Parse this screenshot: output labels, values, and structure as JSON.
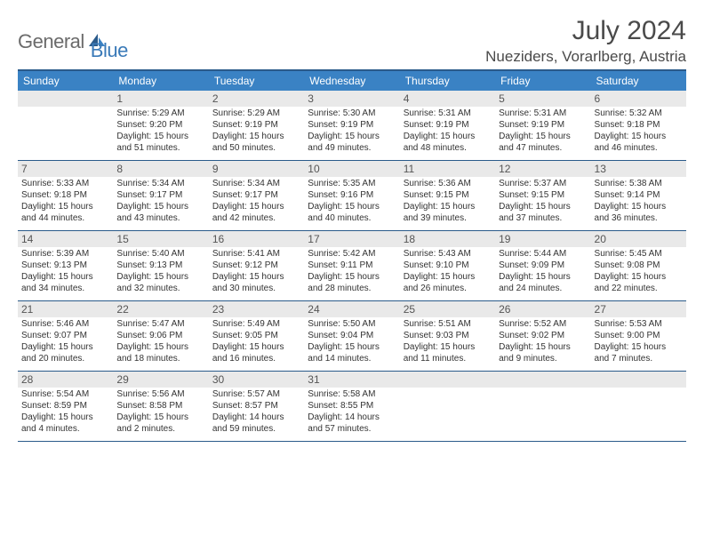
{
  "logo": {
    "general": "General",
    "blue": "Blue"
  },
  "title": "July 2024",
  "location": "Nueziders, Vorarlberg, Austria",
  "weekdays": [
    "Sunday",
    "Monday",
    "Tuesday",
    "Wednesday",
    "Thursday",
    "Friday",
    "Saturday"
  ],
  "colors": {
    "header_bar": "#3a82c4",
    "border": "#2a5a8a",
    "day_num_bg": "#e9e9e9",
    "text": "#333333",
    "logo_gray": "#6b6b6b",
    "logo_blue": "#3a7ab8"
  },
  "weeks": [
    [
      {
        "n": "",
        "sr": "",
        "ss": "",
        "dl": ""
      },
      {
        "n": "1",
        "sr": "Sunrise: 5:29 AM",
        "ss": "Sunset: 9:20 PM",
        "dl": "Daylight: 15 hours and 51 minutes."
      },
      {
        "n": "2",
        "sr": "Sunrise: 5:29 AM",
        "ss": "Sunset: 9:19 PM",
        "dl": "Daylight: 15 hours and 50 minutes."
      },
      {
        "n": "3",
        "sr": "Sunrise: 5:30 AM",
        "ss": "Sunset: 9:19 PM",
        "dl": "Daylight: 15 hours and 49 minutes."
      },
      {
        "n": "4",
        "sr": "Sunrise: 5:31 AM",
        "ss": "Sunset: 9:19 PM",
        "dl": "Daylight: 15 hours and 48 minutes."
      },
      {
        "n": "5",
        "sr": "Sunrise: 5:31 AM",
        "ss": "Sunset: 9:19 PM",
        "dl": "Daylight: 15 hours and 47 minutes."
      },
      {
        "n": "6",
        "sr": "Sunrise: 5:32 AM",
        "ss": "Sunset: 9:18 PM",
        "dl": "Daylight: 15 hours and 46 minutes."
      }
    ],
    [
      {
        "n": "7",
        "sr": "Sunrise: 5:33 AM",
        "ss": "Sunset: 9:18 PM",
        "dl": "Daylight: 15 hours and 44 minutes."
      },
      {
        "n": "8",
        "sr": "Sunrise: 5:34 AM",
        "ss": "Sunset: 9:17 PM",
        "dl": "Daylight: 15 hours and 43 minutes."
      },
      {
        "n": "9",
        "sr": "Sunrise: 5:34 AM",
        "ss": "Sunset: 9:17 PM",
        "dl": "Daylight: 15 hours and 42 minutes."
      },
      {
        "n": "10",
        "sr": "Sunrise: 5:35 AM",
        "ss": "Sunset: 9:16 PM",
        "dl": "Daylight: 15 hours and 40 minutes."
      },
      {
        "n": "11",
        "sr": "Sunrise: 5:36 AM",
        "ss": "Sunset: 9:15 PM",
        "dl": "Daylight: 15 hours and 39 minutes."
      },
      {
        "n": "12",
        "sr": "Sunrise: 5:37 AM",
        "ss": "Sunset: 9:15 PM",
        "dl": "Daylight: 15 hours and 37 minutes."
      },
      {
        "n": "13",
        "sr": "Sunrise: 5:38 AM",
        "ss": "Sunset: 9:14 PM",
        "dl": "Daylight: 15 hours and 36 minutes."
      }
    ],
    [
      {
        "n": "14",
        "sr": "Sunrise: 5:39 AM",
        "ss": "Sunset: 9:13 PM",
        "dl": "Daylight: 15 hours and 34 minutes."
      },
      {
        "n": "15",
        "sr": "Sunrise: 5:40 AM",
        "ss": "Sunset: 9:13 PM",
        "dl": "Daylight: 15 hours and 32 minutes."
      },
      {
        "n": "16",
        "sr": "Sunrise: 5:41 AM",
        "ss": "Sunset: 9:12 PM",
        "dl": "Daylight: 15 hours and 30 minutes."
      },
      {
        "n": "17",
        "sr": "Sunrise: 5:42 AM",
        "ss": "Sunset: 9:11 PM",
        "dl": "Daylight: 15 hours and 28 minutes."
      },
      {
        "n": "18",
        "sr": "Sunrise: 5:43 AM",
        "ss": "Sunset: 9:10 PM",
        "dl": "Daylight: 15 hours and 26 minutes."
      },
      {
        "n": "19",
        "sr": "Sunrise: 5:44 AM",
        "ss": "Sunset: 9:09 PM",
        "dl": "Daylight: 15 hours and 24 minutes."
      },
      {
        "n": "20",
        "sr": "Sunrise: 5:45 AM",
        "ss": "Sunset: 9:08 PM",
        "dl": "Daylight: 15 hours and 22 minutes."
      }
    ],
    [
      {
        "n": "21",
        "sr": "Sunrise: 5:46 AM",
        "ss": "Sunset: 9:07 PM",
        "dl": "Daylight: 15 hours and 20 minutes."
      },
      {
        "n": "22",
        "sr": "Sunrise: 5:47 AM",
        "ss": "Sunset: 9:06 PM",
        "dl": "Daylight: 15 hours and 18 minutes."
      },
      {
        "n": "23",
        "sr": "Sunrise: 5:49 AM",
        "ss": "Sunset: 9:05 PM",
        "dl": "Daylight: 15 hours and 16 minutes."
      },
      {
        "n": "24",
        "sr": "Sunrise: 5:50 AM",
        "ss": "Sunset: 9:04 PM",
        "dl": "Daylight: 15 hours and 14 minutes."
      },
      {
        "n": "25",
        "sr": "Sunrise: 5:51 AM",
        "ss": "Sunset: 9:03 PM",
        "dl": "Daylight: 15 hours and 11 minutes."
      },
      {
        "n": "26",
        "sr": "Sunrise: 5:52 AM",
        "ss": "Sunset: 9:02 PM",
        "dl": "Daylight: 15 hours and 9 minutes."
      },
      {
        "n": "27",
        "sr": "Sunrise: 5:53 AM",
        "ss": "Sunset: 9:00 PM",
        "dl": "Daylight: 15 hours and 7 minutes."
      }
    ],
    [
      {
        "n": "28",
        "sr": "Sunrise: 5:54 AM",
        "ss": "Sunset: 8:59 PM",
        "dl": "Daylight: 15 hours and 4 minutes."
      },
      {
        "n": "29",
        "sr": "Sunrise: 5:56 AM",
        "ss": "Sunset: 8:58 PM",
        "dl": "Daylight: 15 hours and 2 minutes."
      },
      {
        "n": "30",
        "sr": "Sunrise: 5:57 AM",
        "ss": "Sunset: 8:57 PM",
        "dl": "Daylight: 14 hours and 59 minutes."
      },
      {
        "n": "31",
        "sr": "Sunrise: 5:58 AM",
        "ss": "Sunset: 8:55 PM",
        "dl": "Daylight: 14 hours and 57 minutes."
      },
      {
        "n": "",
        "sr": "",
        "ss": "",
        "dl": ""
      },
      {
        "n": "",
        "sr": "",
        "ss": "",
        "dl": ""
      },
      {
        "n": "",
        "sr": "",
        "ss": "",
        "dl": ""
      }
    ]
  ]
}
